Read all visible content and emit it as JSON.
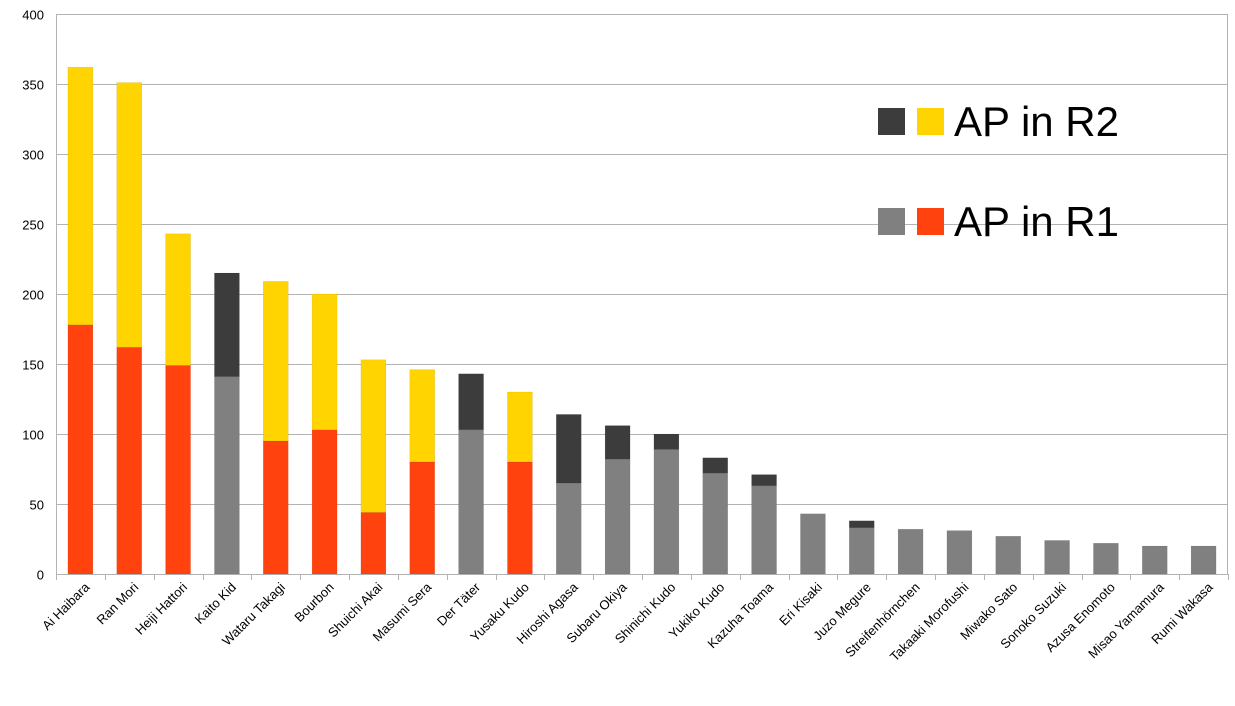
{
  "chart_data": {
    "type": "bar",
    "stacked": true,
    "categories": [
      "Ai Haibara",
      "Ran Mori",
      "Heiji Hattori",
      "Kaito Kid",
      "Wataru Takagi",
      "Bourbon",
      "Shuichi Akai",
      "Masumi Sera",
      "Der Täter",
      "Yusaku Kudo",
      "Hiroshi Agasa",
      "Subaru Okiya",
      "Shinichi Kudo",
      "Yukiko Kudo",
      "Kazuha Toama",
      "Eri Kisaki",
      "Juzo Megure",
      "Streifenhörnchen",
      "Takaaki Morofushi",
      "Miwako Sato",
      "Sonoko Suzuki",
      "Azusa Enomoto",
      "Misao Yamamura",
      "Rumi Wakasa"
    ],
    "r1": [
      178,
      162,
      149,
      141,
      95,
      103,
      44,
      80,
      103,
      80,
      65,
      82,
      89,
      72,
      63,
      43,
      33,
      32,
      31,
      27,
      24,
      22,
      20,
      20
    ],
    "r2": [
      184,
      189,
      94,
      74,
      114,
      97,
      109,
      66,
      40,
      50,
      49,
      24,
      11,
      11,
      8,
      0,
      5,
      0,
      0,
      0,
      0,
      0,
      0,
      0
    ],
    "highlight": [
      true,
      true,
      true,
      false,
      true,
      true,
      true,
      true,
      false,
      true,
      false,
      false,
      false,
      false,
      false,
      false,
      false,
      false,
      false,
      false,
      false,
      false,
      false,
      false
    ],
    "ylim": [
      0,
      400
    ],
    "yticks": [
      0,
      50,
      100,
      150,
      200,
      250,
      300,
      350,
      400
    ],
    "grid": true,
    "colors": {
      "r1_highlight": "#ff420e",
      "r2_highlight": "#ffd400",
      "r1_normal": "#808080",
      "r2_normal": "#3c3c3c",
      "grid": "#b3b3b3",
      "axis": "#b3b3b3"
    },
    "legend": {
      "placement": "top-right",
      "entries": [
        "AP in R2",
        "AP in R1"
      ]
    }
  }
}
